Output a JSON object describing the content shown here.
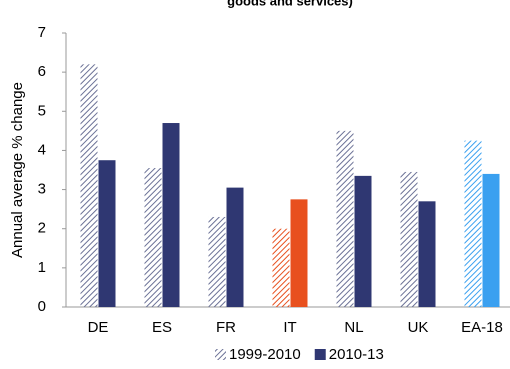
{
  "chart_data": {
    "type": "bar",
    "title": "goods and services)",
    "y_label": "Annual average % change",
    "categories": [
      "DE",
      "ES",
      "FR",
      "IT",
      "NL",
      "UK",
      "EA-18"
    ],
    "series": [
      {
        "name": "1999-2010",
        "color": "#6b7196",
        "pattern": "hatch",
        "colors": [
          "#6b7196",
          "#6b7196",
          "#6b7196",
          "#e8501e",
          "#6b7196",
          "#6b7196",
          "#3aa0f0"
        ],
        "values": [
          6.2,
          3.55,
          2.3,
          2.0,
          4.5,
          3.45,
          4.25
        ]
      },
      {
        "name": "2010-13",
        "color": "#2f3772",
        "pattern": "solid",
        "colors": [
          "#2f3772",
          "#2f3772",
          "#2f3772",
          "#e8501e",
          "#2f3772",
          "#2f3772",
          "#3aa0f0"
        ],
        "values": [
          3.75,
          4.7,
          3.05,
          2.75,
          3.35,
          2.7,
          3.4
        ]
      }
    ],
    "ylim": [
      0,
      7
    ],
    "yticks": [
      0,
      1,
      2,
      3,
      4,
      5,
      6,
      7
    ],
    "grid": false,
    "legend": "bottom"
  }
}
